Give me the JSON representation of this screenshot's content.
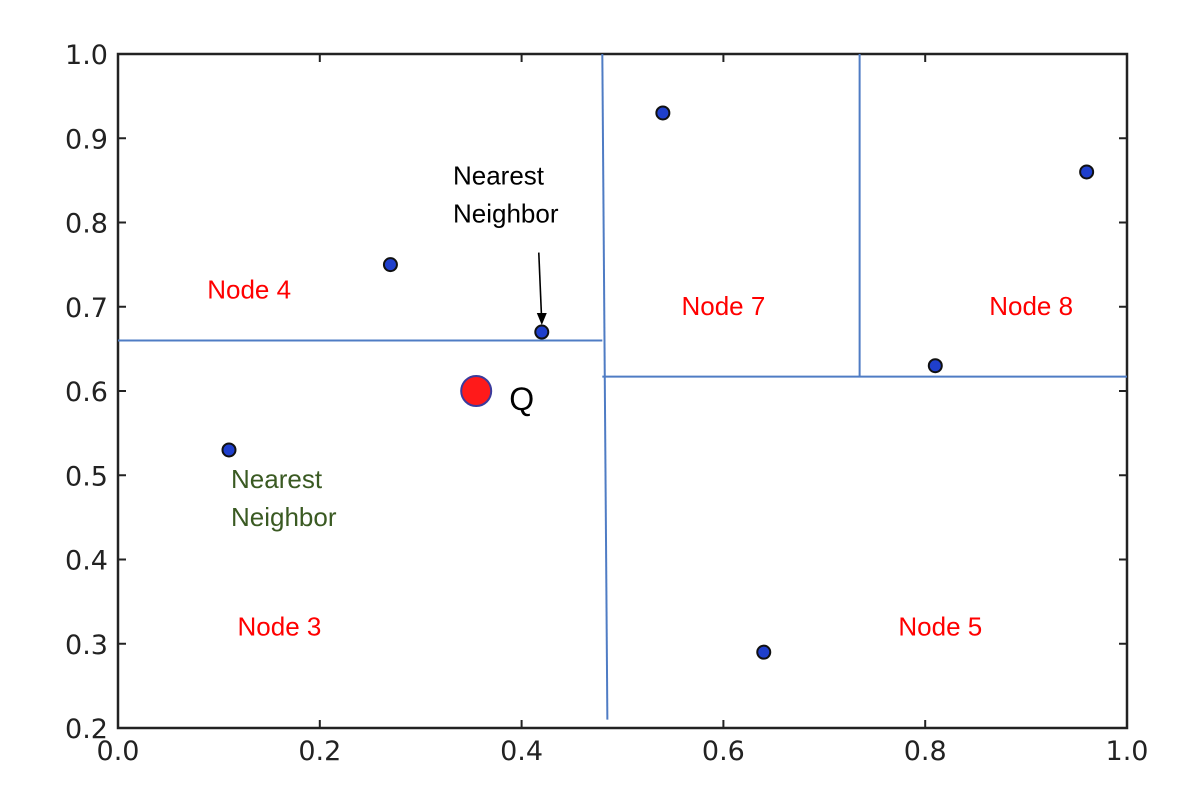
{
  "chart_data": {
    "type": "scatter",
    "title": "",
    "xlabel": "",
    "ylabel": "",
    "xlim": [
      0.0,
      1.0
    ],
    "ylim": [
      0.2,
      1.0
    ],
    "grid": false,
    "x_ticks": [
      "0.0",
      "0.2",
      "0.4",
      "0.6",
      "0.8",
      "1.0"
    ],
    "y_ticks": [
      "0.2",
      "0.3",
      "0.4",
      "0.5",
      "0.6",
      "0.7",
      "0.8",
      "0.9",
      "1.0"
    ],
    "points": [
      {
        "x": 0.11,
        "y": 0.53
      },
      {
        "x": 0.27,
        "y": 0.75
      },
      {
        "x": 0.42,
        "y": 0.67
      },
      {
        "x": 0.54,
        "y": 0.93
      },
      {
        "x": 0.64,
        "y": 0.29
      },
      {
        "x": 0.81,
        "y": 0.63
      },
      {
        "x": 0.96,
        "y": 0.86
      }
    ],
    "query_point": {
      "label": "Q",
      "x": 0.355,
      "y": 0.6
    },
    "split_lines": [
      {
        "x1": 0.0,
        "y1": 0.66,
        "x2": 0.48,
        "y2": 0.66
      },
      {
        "x1": 0.48,
        "y1": 1.0,
        "x2": 0.485,
        "y2": 0.21
      },
      {
        "x1": 0.48,
        "y1": 0.617,
        "x2": 1.0,
        "y2": 0.617
      },
      {
        "x1": 0.735,
        "y1": 1.0,
        "x2": 0.735,
        "y2": 0.617
      }
    ],
    "regions": [
      {
        "label": "Node 4",
        "x": 0.13,
        "y": 0.71
      },
      {
        "label": "Node 7",
        "x": 0.6,
        "y": 0.69
      },
      {
        "label": "Node 8",
        "x": 0.905,
        "y": 0.69
      },
      {
        "label": "Node 3",
        "x": 0.16,
        "y": 0.31
      },
      {
        "label": "Node 5",
        "x": 0.815,
        "y": 0.31
      }
    ],
    "annotations": [
      {
        "lines": [
          "Nearest",
          "Neighbor"
        ],
        "style": "black",
        "x": 0.332,
        "y": 0.845,
        "arrow_to": {
          "x": 0.42,
          "y": 0.676
        }
      },
      {
        "lines": [
          "Nearest",
          "Neighbor"
        ],
        "style": "green",
        "x": 0.112,
        "y": 0.485
      }
    ],
    "colors": {
      "point": "#1f3fcc",
      "point_edge": "#111111",
      "query": "#ff1a1a",
      "query_edge": "#3b3b9c",
      "split_line": "#4f7cc4",
      "region_label": "#ff0000",
      "annotation_green": "#3a5a22"
    }
  }
}
